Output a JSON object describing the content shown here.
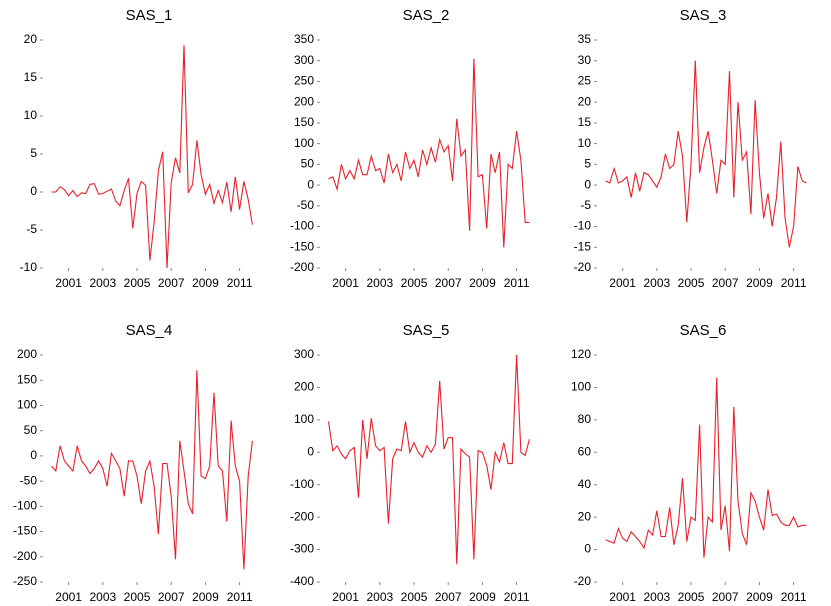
{
  "chart_data": [
    {
      "type": "line",
      "title": "SAS_1",
      "color": "#e8202a",
      "x": [
        2000,
        2000.25,
        2000.5,
        2000.75,
        2001,
        2001.25,
        2001.5,
        2001.75,
        2002,
        2002.25,
        2002.5,
        2002.75,
        2003,
        2003.25,
        2003.5,
        2003.75,
        2004,
        2004.25,
        2004.5,
        2004.75,
        2005,
        2005.25,
        2005.5,
        2005.75,
        2006,
        2006.25,
        2006.5,
        2006.75,
        2007,
        2007.25,
        2007.5,
        2007.75,
        2008,
        2008.25,
        2008.5,
        2008.75,
        2009,
        2009.25,
        2009.5,
        2009.75,
        2010,
        2010.25,
        2010.5,
        2010.75,
        2011,
        2011.25,
        2011.5,
        2011.75
      ],
      "values": [
        0,
        0,
        0.7,
        0.3,
        -0.5,
        0.2,
        -0.6,
        -0.1,
        -0.2,
        1.0,
        1.1,
        -0.3,
        -0.2,
        0.1,
        0.4,
        -1.2,
        -1.8,
        0.2,
        1.8,
        -4.8,
        -0.2,
        1.4,
        0.9,
        -9.0,
        -4.0,
        2.8,
        5.3,
        -10.0,
        1.2,
        4.5,
        2.5,
        19.3,
        -0.1,
        1.0,
        6.8,
        2.3,
        -0.3,
        1.0,
        -1.5,
        0.2,
        -1.4,
        1.3,
        -2.6,
        2.0,
        -2.3,
        1.4,
        -1.0,
        -4.3
      ],
      "xlim": [
        1999.5,
        2011.9
      ],
      "xticks": [
        2001,
        2003,
        2005,
        2007,
        2009,
        2011
      ],
      "ylim": [
        -10,
        20
      ],
      "yticks": [
        -10,
        -5,
        0,
        5,
        10,
        15,
        20
      ]
    },
    {
      "type": "line",
      "title": "SAS_2",
      "color": "#e8202a",
      "x": [
        2000,
        2000.25,
        2000.5,
        2000.75,
        2001,
        2001.25,
        2001.5,
        2001.75,
        2002,
        2002.25,
        2002.5,
        2002.75,
        2003,
        2003.25,
        2003.5,
        2003.75,
        2004,
        2004.25,
        2004.5,
        2004.75,
        2005,
        2005.25,
        2005.5,
        2005.75,
        2006,
        2006.25,
        2006.5,
        2006.75,
        2007,
        2007.25,
        2007.5,
        2007.75,
        2008,
        2008.25,
        2008.5,
        2008.75,
        2009,
        2009.25,
        2009.5,
        2009.75,
        2010,
        2010.25,
        2010.5,
        2010.75,
        2011,
        2011.25,
        2011.5,
        2011.75
      ],
      "values": [
        15,
        20,
        -10,
        50,
        15,
        35,
        15,
        60,
        25,
        25,
        70,
        35,
        40,
        5,
        75,
        30,
        50,
        10,
        80,
        40,
        60,
        20,
        85,
        50,
        90,
        55,
        110,
        80,
        95,
        10,
        160,
        70,
        85,
        -110,
        305,
        20,
        25,
        -105,
        75,
        30,
        80,
        -150,
        50,
        40,
        130,
        60,
        -90,
        -90
      ],
      "xlim": [
        1999.5,
        2011.9
      ],
      "xticks": [
        2001,
        2003,
        2005,
        2007,
        2009,
        2011
      ],
      "ylim": [
        -200,
        350
      ],
      "yticks": [
        -200,
        -150,
        -100,
        -50,
        0,
        50,
        100,
        150,
        200,
        250,
        300,
        350
      ]
    },
    {
      "type": "line",
      "title": "SAS_3",
      "color": "#e8202a",
      "x": [
        2000,
        2000.25,
        2000.5,
        2000.75,
        2001,
        2001.25,
        2001.5,
        2001.75,
        2002,
        2002.25,
        2002.5,
        2002.75,
        2003,
        2003.25,
        2003.5,
        2003.75,
        2004,
        2004.25,
        2004.5,
        2004.75,
        2005,
        2005.25,
        2005.5,
        2005.75,
        2006,
        2006.25,
        2006.5,
        2006.75,
        2007,
        2007.25,
        2007.5,
        2007.75,
        2008,
        2008.25,
        2008.5,
        2008.75,
        2009,
        2009.25,
        2009.5,
        2009.75,
        2010,
        2010.25,
        2010.5,
        2010.75,
        2011,
        2011.25,
        2011.5,
        2011.75
      ],
      "values": [
        1,
        0.5,
        4,
        0.5,
        1,
        2,
        -3,
        3,
        -1.5,
        3,
        2.5,
        1,
        -0.5,
        2,
        7.5,
        4,
        5,
        13,
        7,
        -9,
        5,
        30,
        3,
        9,
        13,
        6,
        -2,
        6,
        5,
        27.5,
        -3,
        20,
        6,
        8,
        -7,
        20.5,
        3,
        -8,
        -2,
        -10,
        -3,
        10.5,
        -8,
        -15,
        -10,
        4.5,
        1,
        0.5
      ],
      "xlim": [
        1999.5,
        2011.9
      ],
      "xticks": [
        2001,
        2003,
        2005,
        2007,
        2009,
        2011
      ],
      "ylim": [
        -20,
        35
      ],
      "yticks": [
        -20,
        -15,
        -10,
        -5,
        0,
        5,
        10,
        15,
        20,
        25,
        30,
        35
      ]
    },
    {
      "type": "line",
      "title": "SAS_4",
      "color": "#e8202a",
      "x": [
        2000,
        2000.25,
        2000.5,
        2000.75,
        2001,
        2001.25,
        2001.5,
        2001.75,
        2002,
        2002.25,
        2002.5,
        2002.75,
        2003,
        2003.25,
        2003.5,
        2003.75,
        2004,
        2004.25,
        2004.5,
        2004.75,
        2005,
        2005.25,
        2005.5,
        2005.75,
        2006,
        2006.25,
        2006.5,
        2006.75,
        2007,
        2007.25,
        2007.5,
        2007.75,
        2008,
        2008.25,
        2008.5,
        2008.75,
        2009,
        2009.25,
        2009.5,
        2009.75,
        2010,
        2010.25,
        2010.5,
        2010.75,
        2011,
        2011.25,
        2011.5,
        2011.75
      ],
      "values": [
        -20,
        -30,
        20,
        -10,
        -20,
        -30,
        20,
        -10,
        -20,
        -35,
        -25,
        -10,
        -25,
        -60,
        5,
        -10,
        -25,
        -80,
        -10,
        -10,
        -40,
        -95,
        -30,
        -10,
        -60,
        -155,
        -15,
        -15,
        -80,
        -205,
        30,
        -30,
        -95,
        -115,
        170,
        -40,
        -45,
        -20,
        125,
        -20,
        -30,
        -130,
        70,
        -20,
        -50,
        -225,
        -40,
        30
      ],
      "xlim": [
        1999.5,
        2011.9
      ],
      "xticks": [
        2001,
        2003,
        2005,
        2007,
        2009,
        2011
      ],
      "ylim": [
        -250,
        200
      ],
      "yticks": [
        -250,
        -200,
        -150,
        -100,
        -50,
        0,
        50,
        100,
        150,
        200
      ]
    },
    {
      "type": "line",
      "title": "SAS_5",
      "color": "#e8202a",
      "x": [
        2000,
        2000.25,
        2000.5,
        2000.75,
        2001,
        2001.25,
        2001.5,
        2001.75,
        2002,
        2002.25,
        2002.5,
        2002.75,
        2003,
        2003.25,
        2003.5,
        2003.75,
        2004,
        2004.25,
        2004.5,
        2004.75,
        2005,
        2005.25,
        2005.5,
        2005.75,
        2006,
        2006.25,
        2006.5,
        2006.75,
        2007,
        2007.25,
        2007.5,
        2007.75,
        2008,
        2008.25,
        2008.5,
        2008.75,
        2009,
        2009.25,
        2009.5,
        2009.75,
        2010,
        2010.25,
        2010.5,
        2010.75,
        2011,
        2011.25,
        2011.5,
        2011.75
      ],
      "values": [
        95,
        5,
        20,
        -5,
        -20,
        5,
        15,
        -140,
        100,
        -20,
        105,
        20,
        5,
        15,
        -220,
        -20,
        10,
        5,
        95,
        0,
        30,
        0,
        -15,
        20,
        0,
        25,
        220,
        10,
        45,
        45,
        -345,
        10,
        -5,
        -15,
        -330,
        5,
        0,
        -40,
        -115,
        0,
        -30,
        30,
        -35,
        -35,
        300,
        0,
        -10,
        40
      ],
      "xlim": [
        1999.5,
        2011.9
      ],
      "xticks": [
        2001,
        2003,
        2005,
        2007,
        2009,
        2011
      ],
      "ylim": [
        -400,
        300
      ],
      "yticks": [
        -400,
        -300,
        -200,
        -100,
        0,
        100,
        200,
        300
      ]
    },
    {
      "type": "line",
      "title": "SAS_6",
      "color": "#e8202a",
      "x": [
        2000,
        2000.25,
        2000.5,
        2000.75,
        2001,
        2001.25,
        2001.5,
        2001.75,
        2002,
        2002.25,
        2002.5,
        2002.75,
        2003,
        2003.25,
        2003.5,
        2003.75,
        2004,
        2004.25,
        2004.5,
        2004.75,
        2005,
        2005.25,
        2005.5,
        2005.75,
        2006,
        2006.25,
        2006.5,
        2006.75,
        2007,
        2007.25,
        2007.5,
        2007.75,
        2008,
        2008.25,
        2008.5,
        2008.75,
        2009,
        2009.25,
        2009.5,
        2009.75,
        2010,
        2010.25,
        2010.5,
        2010.75,
        2011,
        2011.25,
        2011.5,
        2011.75
      ],
      "values": [
        6,
        5,
        4,
        13,
        7,
        5,
        11,
        8,
        5,
        1,
        12,
        9,
        24,
        8,
        8,
        26,
        3,
        15,
        44,
        5,
        20,
        18,
        77,
        -5,
        20,
        17,
        106,
        12,
        27,
        -1,
        88,
        30,
        10,
        3,
        35,
        30,
        20,
        12,
        37,
        21,
        22,
        17,
        15,
        15,
        20,
        14,
        15,
        15
      ],
      "xlim": [
        1999.5,
        2011.9
      ],
      "xticks": [
        2001,
        2003,
        2005,
        2007,
        2009,
        2011
      ],
      "ylim": [
        -20,
        120
      ],
      "yticks": [
        -20,
        0,
        20,
        40,
        60,
        80,
        100,
        120
      ]
    }
  ]
}
